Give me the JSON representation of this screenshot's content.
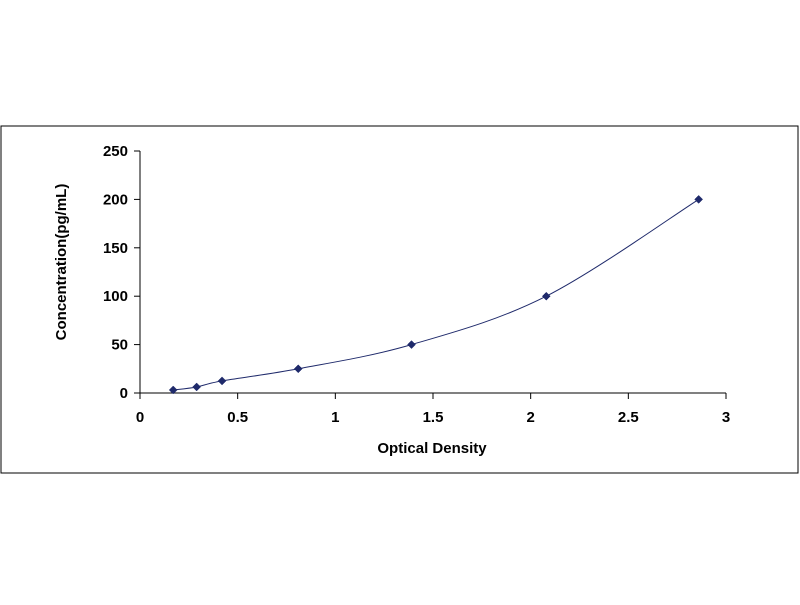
{
  "chart_data": {
    "type": "scatter",
    "title": "",
    "xlabel": "Optical Density",
    "ylabel": "Concentration(pg/mL)",
    "xlim": [
      0,
      3
    ],
    "ylim": [
      0,
      250
    ],
    "x_ticks": [
      {
        "value": 0,
        "label": "0"
      },
      {
        "value": 0.5,
        "label": "0.5"
      },
      {
        "value": 1,
        "label": "1"
      },
      {
        "value": 1.5,
        "label": "1.5"
      },
      {
        "value": 2,
        "label": "2"
      },
      {
        "value": 2.5,
        "label": "2.5"
      },
      {
        "value": 3,
        "label": "3"
      }
    ],
    "y_ticks": [
      {
        "value": 0,
        "label": "0"
      },
      {
        "value": 50,
        "label": "50"
      },
      {
        "value": 100,
        "label": "100"
      },
      {
        "value": 150,
        "label": "150"
      },
      {
        "value": 200,
        "label": "200"
      },
      {
        "value": 250,
        "label": "250"
      }
    ],
    "grid": false,
    "legend": "none",
    "series": [
      {
        "x": [
          0.17,
          0.29,
          0.42,
          0.81,
          1.39,
          2.08,
          2.86
        ],
        "y": [
          3.12,
          6.25,
          12.5,
          25,
          50,
          100,
          200
        ],
        "marker": "diamond",
        "line": "smooth",
        "color": "#1f2a6b"
      }
    ]
  }
}
